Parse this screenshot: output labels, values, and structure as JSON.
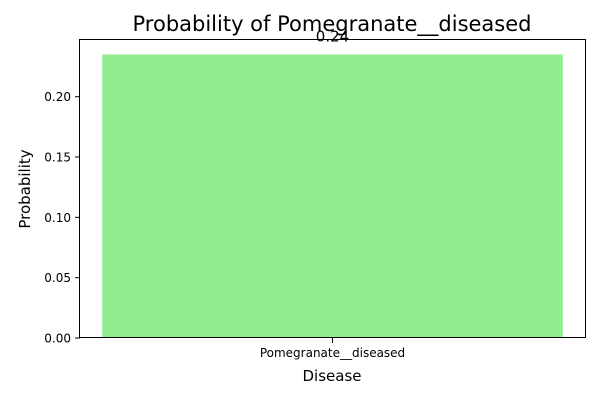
{
  "chart_data": {
    "type": "bar",
    "title": "Probability of Pomegranate__diseased",
    "xlabel": "Disease",
    "ylabel": "Probability",
    "categories": [
      "Pomegranate__diseased"
    ],
    "values": [
      0.235
    ],
    "data_labels": [
      "0.24"
    ],
    "ylim": [
      0,
      0.247
    ],
    "yticks": [
      0.0,
      0.05,
      0.1,
      0.15,
      0.2
    ],
    "ytick_labels": [
      "0.00",
      "0.05",
      "0.10",
      "0.15",
      "0.20"
    ],
    "bar_color": "#90ee90",
    "grid": false,
    "legend": "none"
  }
}
